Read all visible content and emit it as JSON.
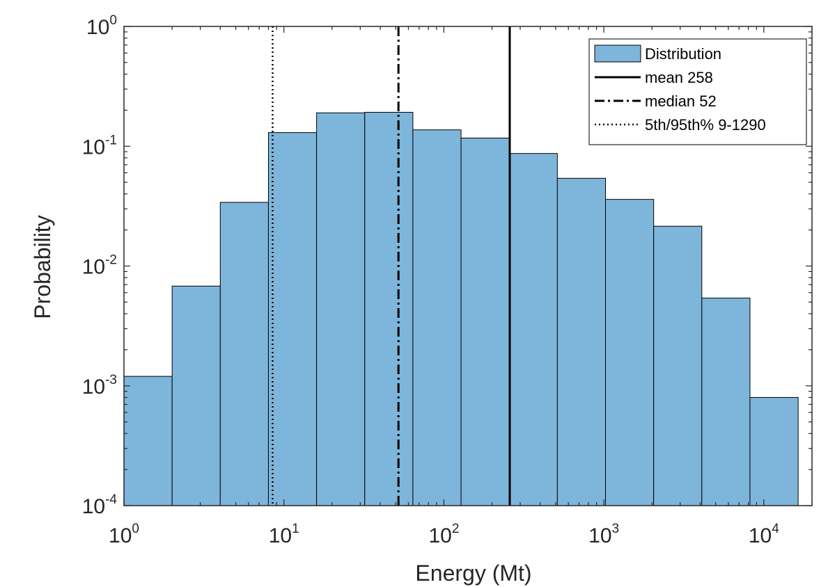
{
  "chart_data": {
    "type": "bar",
    "subtype": "histogram",
    "xscale": "log",
    "yscale": "log",
    "xlabel": "Energy (Mt)",
    "ylabel": "Probability",
    "xlim": [
      1,
      20000
    ],
    "ylim": [
      0.0001,
      1
    ],
    "xticks": [
      {
        "value": 1,
        "base": "10",
        "exp": "0"
      },
      {
        "value": 10,
        "base": "10",
        "exp": "1"
      },
      {
        "value": 100,
        "base": "10",
        "exp": "2"
      },
      {
        "value": 1000,
        "base": "10",
        "exp": "3"
      },
      {
        "value": 10000,
        "base": "10",
        "exp": "4"
      }
    ],
    "yticks": [
      {
        "value": 1,
        "base": "10",
        "exp": "0"
      },
      {
        "value": 0.1,
        "base": "10",
        "exp": "-1"
      },
      {
        "value": 0.01,
        "base": "10",
        "exp": "-2"
      },
      {
        "value": 0.001,
        "base": "10",
        "exp": "-3"
      },
      {
        "value": 0.0001,
        "base": "10",
        "exp": "-4"
      }
    ],
    "bins": [
      {
        "from": 1,
        "to": 2,
        "value": 0.0012
      },
      {
        "from": 2,
        "to": 4,
        "value": 0.0068
      },
      {
        "from": 4,
        "to": 8,
        "value": 0.034
      },
      {
        "from": 8,
        "to": 16,
        "value": 0.13
      },
      {
        "from": 16,
        "to": 32,
        "value": 0.19
      },
      {
        "from": 32,
        "to": 64,
        "value": 0.192
      },
      {
        "from": 64,
        "to": 128,
        "value": 0.137
      },
      {
        "from": 128,
        "to": 256,
        "value": 0.117
      },
      {
        "from": 256,
        "to": 512,
        "value": 0.087
      },
      {
        "from": 512,
        "to": 1024,
        "value": 0.054
      },
      {
        "from": 1024,
        "to": 2048,
        "value": 0.036
      },
      {
        "from": 2048,
        "to": 4096,
        "value": 0.0215
      },
      {
        "from": 4096,
        "to": 8192,
        "value": 0.0054
      },
      {
        "from": 8192,
        "to": 16384,
        "value": 0.0008
      }
    ],
    "bar_color": "#7EB6DB",
    "edge_color": "#000000",
    "vlines": [
      {
        "x": 258,
        "style": "solid"
      },
      {
        "x": 52,
        "style": "dashdot"
      },
      {
        "x": 8.5,
        "style": "dotted"
      }
    ],
    "legend": {
      "placement": "top-right",
      "entries": [
        {
          "label": "Distribution",
          "kind": "patch"
        },
        {
          "label": "mean 258",
          "kind": "line",
          "style": "solid"
        },
        {
          "label": "median 52",
          "kind": "line",
          "style": "dashdot"
        },
        {
          "label": "5th/95th% 9-1290",
          "kind": "line",
          "style": "dotted"
        }
      ]
    },
    "grid": false
  }
}
